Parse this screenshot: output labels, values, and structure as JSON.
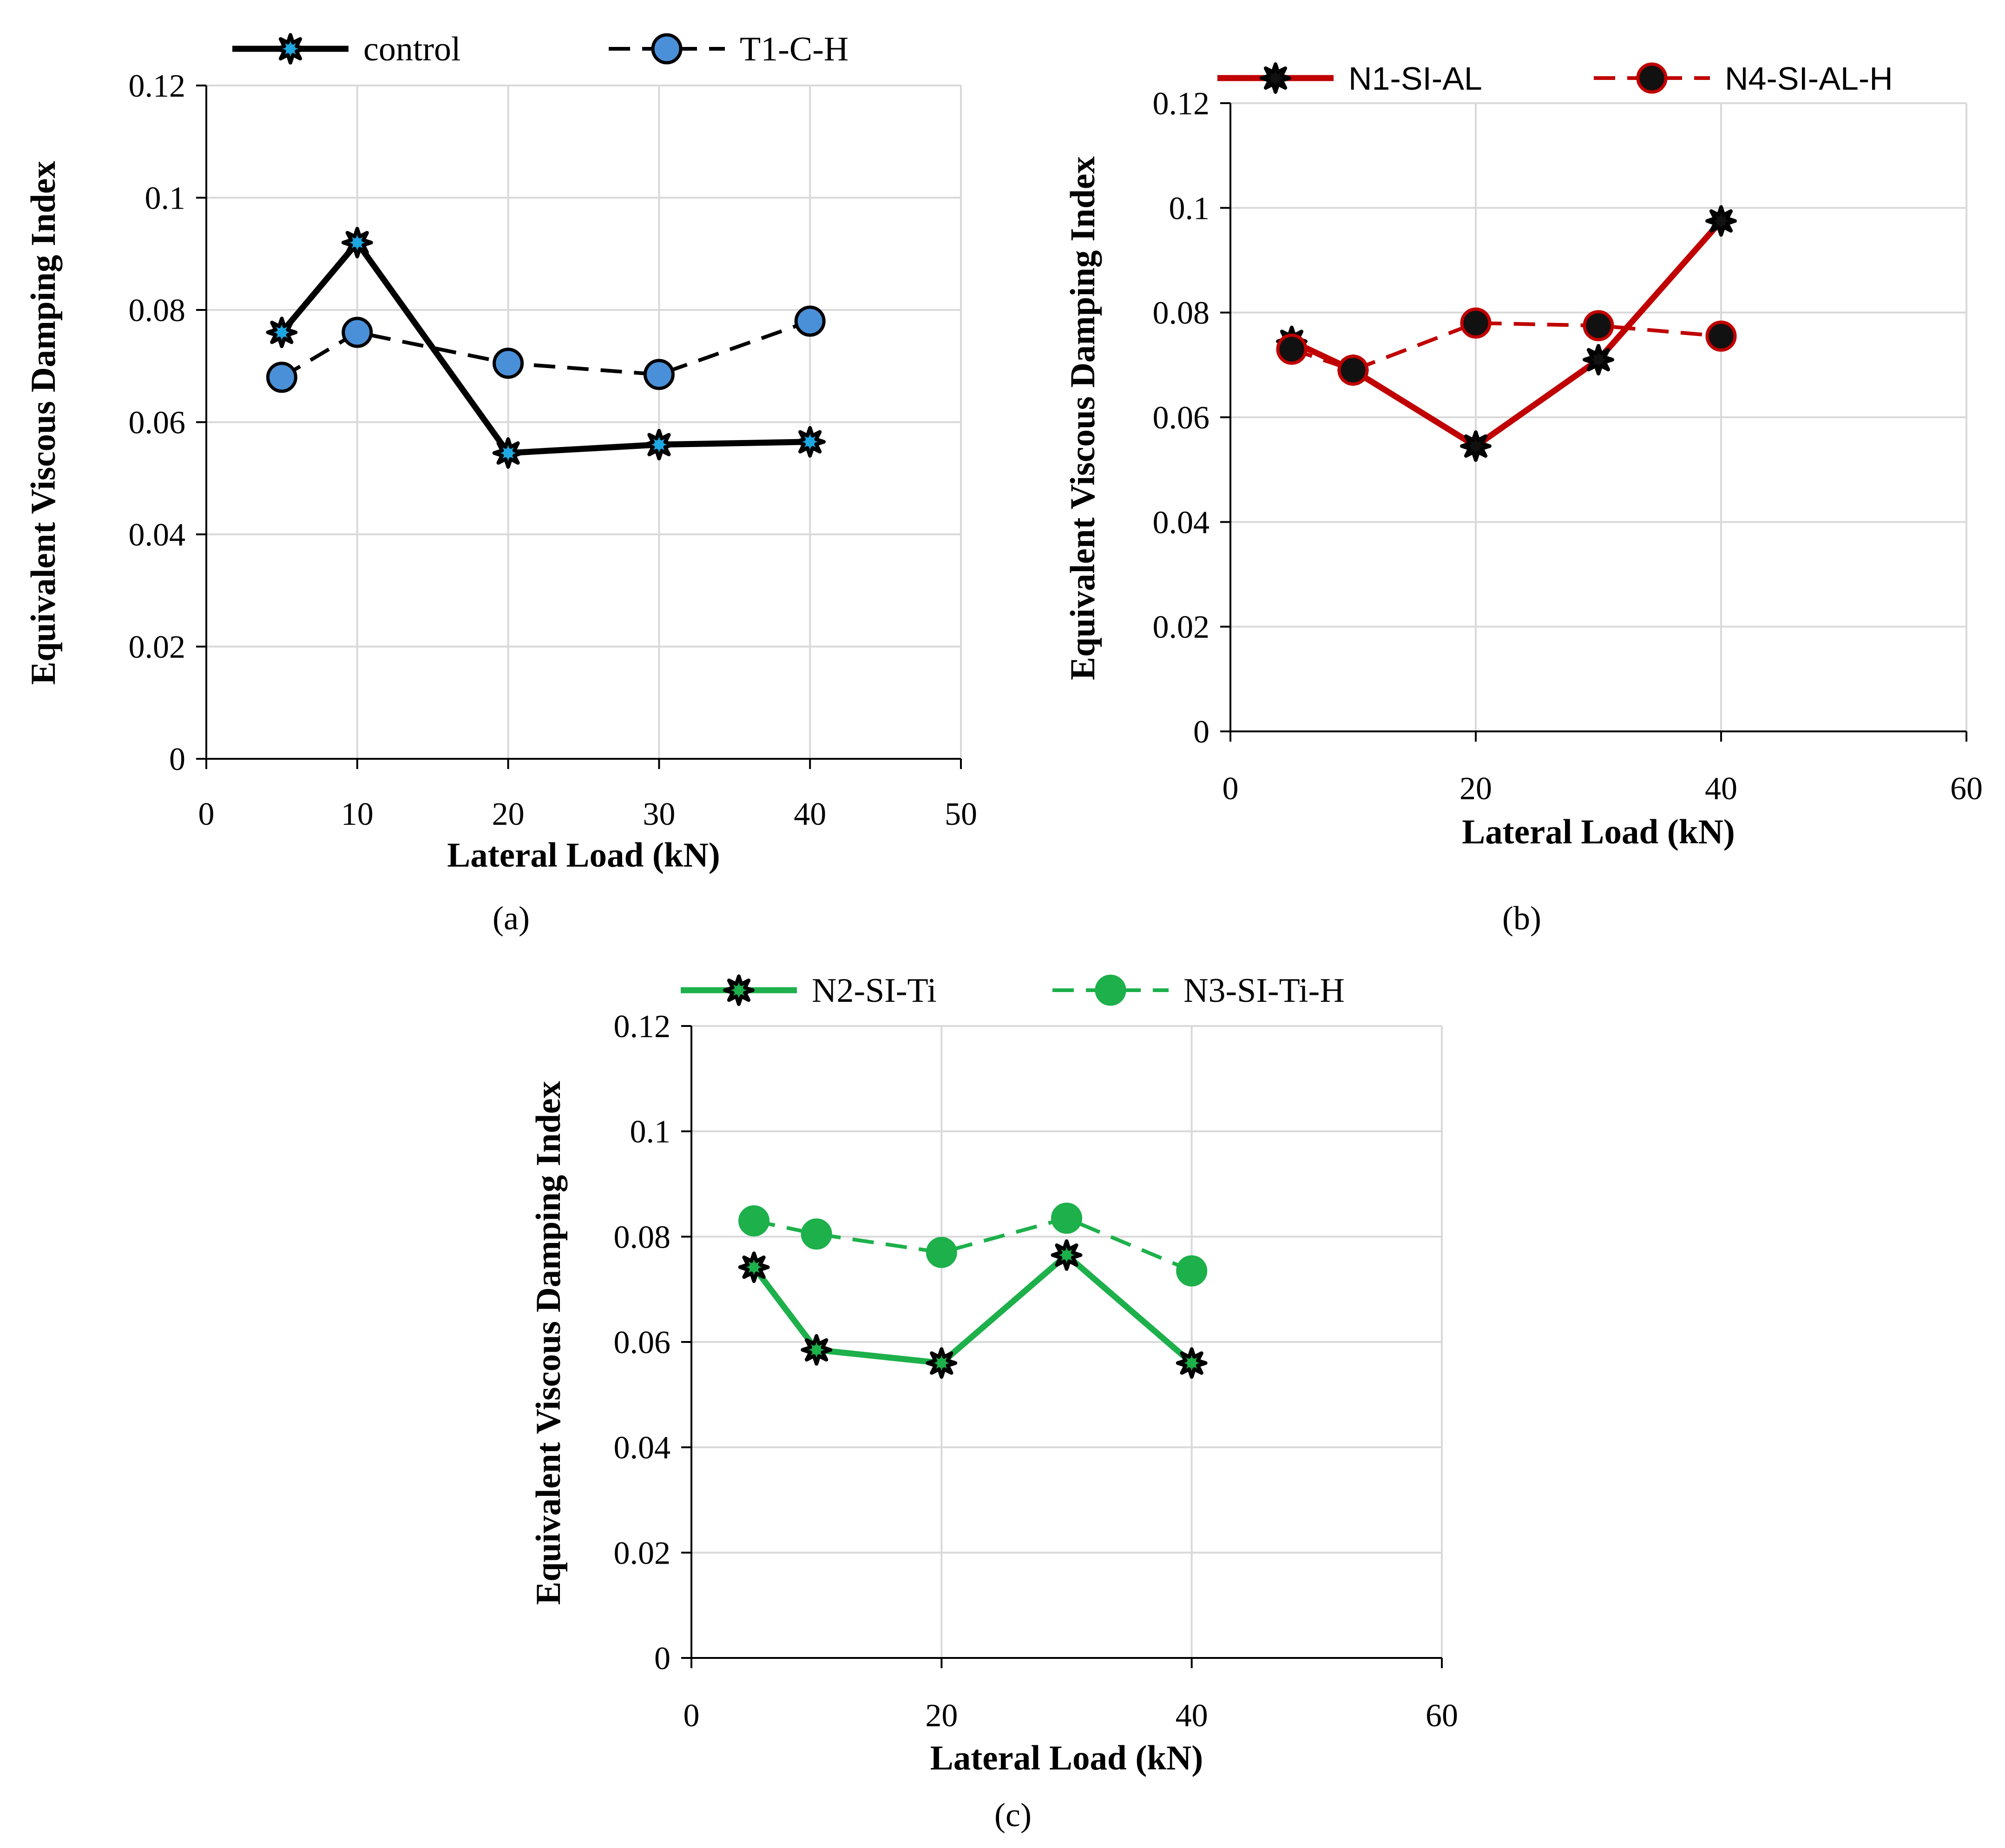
{
  "figure": {
    "captions": [
      "(a)",
      "(b)",
      "(c)"
    ]
  },
  "chart_data": [
    {
      "type": "line",
      "caption": "(a)",
      "xlabel": "Lateral Load (kN)",
      "ylabel": "Equivalent Viscous Damping Index",
      "xlim": [
        0,
        50
      ],
      "ylim": [
        0,
        0.12
      ],
      "xticks": [
        "0",
        "10",
        "20",
        "30",
        "40",
        "50"
      ],
      "yticks": [
        "0",
        "0.02",
        "0.04",
        "0.06",
        "0.08",
        "0.1",
        "0.12"
      ],
      "grid": true,
      "legend_position": "top",
      "x": [
        5,
        10,
        20,
        30,
        40
      ],
      "series": [
        {
          "name": "control",
          "values": [
            0.076,
            0.092,
            0.0545,
            0.056,
            0.0565
          ],
          "color": "#000000",
          "dash": "solid",
          "marker": "star",
          "marker_color": "#1EA7E1"
        },
        {
          "name": "T1-C-H",
          "values": [
            0.068,
            0.076,
            0.0705,
            0.0685,
            0.078
          ],
          "color": "#000000",
          "dash": "dashed",
          "marker": "circle",
          "marker_color": "#4A90D9"
        }
      ]
    },
    {
      "type": "line",
      "caption": "(b)",
      "xlabel": "Lateral Load (kN)",
      "ylabel": "Equivalent Viscous Damping Index",
      "xlim": [
        0,
        60
      ],
      "ylim": [
        0,
        0.12
      ],
      "xticks": [
        "0",
        "20",
        "40",
        "60"
      ],
      "yticks": [
        "0",
        "0.02",
        "0.04",
        "0.06",
        "0.08",
        "0.1",
        "0.12"
      ],
      "grid": true,
      "legend_position": "top",
      "x": [
        5,
        10,
        20,
        30,
        40
      ],
      "series": [
        {
          "name": "N1-SI-AL",
          "values": [
            0.0745,
            0.069,
            0.0545,
            0.071,
            0.0975
          ],
          "color": "#C00000",
          "dash": "solid",
          "marker": "star",
          "marker_color": "#111111"
        },
        {
          "name": "N4-SI-AL-H",
          "values": [
            0.073,
            0.069,
            0.078,
            0.0775,
            0.0755
          ],
          "color": "#C00000",
          "dash": "dashed",
          "marker": "circle",
          "marker_color": "#111111"
        }
      ]
    },
    {
      "type": "line",
      "caption": "(c)",
      "xlabel": "Lateral Load (kN)",
      "ylabel": "Equivalent Viscous Damping Index",
      "xlim": [
        0,
        60
      ],
      "ylim": [
        0,
        0.12
      ],
      "xticks": [
        "0",
        "20",
        "40",
        "60"
      ],
      "yticks": [
        "0",
        "0.02",
        "0.04",
        "0.06",
        "0.08",
        "0.1",
        "0.12"
      ],
      "grid": true,
      "legend_position": "top",
      "x": [
        5,
        10,
        20,
        30,
        40
      ],
      "series": [
        {
          "name": "N2-SI-Ti",
          "values": [
            0.0742,
            0.0585,
            0.056,
            0.0765,
            0.056
          ],
          "color": "#1DB04B",
          "dash": "solid",
          "marker": "star",
          "marker_color": "#1DB04B"
        },
        {
          "name": "N3-SI-Ti-H",
          "values": [
            0.083,
            0.0805,
            0.077,
            0.0835,
            0.0735
          ],
          "color": "#1DB04B",
          "dash": "dashed",
          "marker": "circle",
          "marker_color": "#1DB04B"
        }
      ]
    }
  ]
}
